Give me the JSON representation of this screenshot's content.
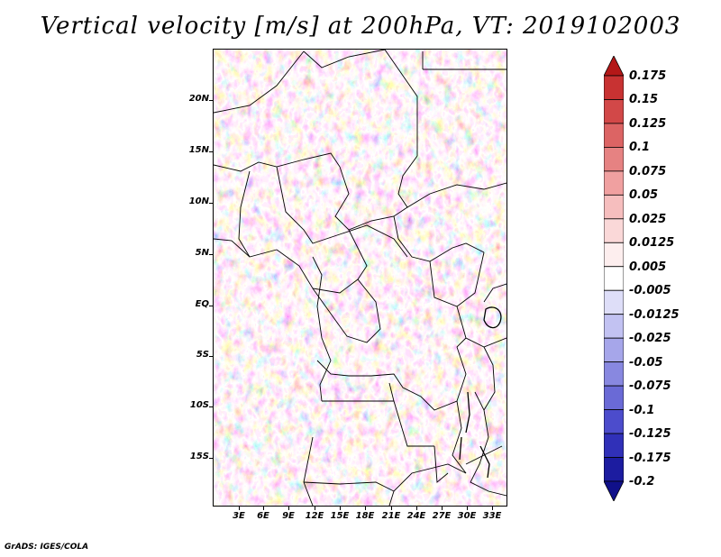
{
  "title": "Vertical velocity [m/s] at 200hPa, VT: 2019102003",
  "lat_labels": [
    "20N",
    "15N",
    "10N",
    "5N",
    "EQ",
    "5S",
    "10S",
    "15S"
  ],
  "lon_labels": [
    "3E",
    "6E",
    "9E",
    "12E",
    "15E",
    "18E",
    "21E",
    "24E",
    "27E",
    "30E",
    "33E"
  ],
  "colorbar": {
    "labels": [
      "0.175",
      "0.15",
      "0.125",
      "0.1",
      "0.075",
      "0.05",
      "0.025",
      "0.0125",
      "0.005",
      "-0.005",
      "-0.0125",
      "-0.025",
      "-0.05",
      "-0.075",
      "-0.1",
      "-0.125",
      "-0.175",
      "-0.2"
    ],
    "colors": [
      "#b41818",
      "#c83232",
      "#d24848",
      "#dc6464",
      "#e68282",
      "#f0a0a0",
      "#f6bebe",
      "#fad8d8",
      "#fdeeee",
      "#ffffff",
      "#dedef8",
      "#c2c2f2",
      "#a6a6ea",
      "#8888e0",
      "#6a6ad6",
      "#4c4ccc",
      "#3030b8",
      "#1c1ca0",
      "#10108a"
    ]
  },
  "footer": "GrADS: IGES/COLA"
}
